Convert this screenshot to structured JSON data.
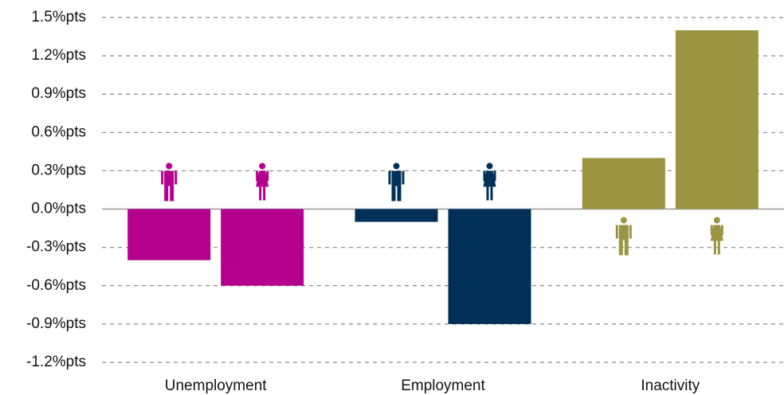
{
  "chart_data": {
    "type": "bar",
    "categories": [
      "Unemployment",
      "Employment",
      "Inactivity"
    ],
    "colors": [
      "#b5008f",
      "#003057",
      "#9b9441"
    ],
    "series": [
      {
        "values": [
          -0.4,
          -0.1,
          0.4
        ]
      },
      {
        "values": [
          -0.6,
          -0.9,
          1.4
        ]
      }
    ],
    "ylim": [
      -1.2,
      1.5
    ],
    "yticks": [
      {
        "value": 1.5,
        "label": "1.5%pts"
      },
      {
        "value": 1.2,
        "label": "1.2%pts"
      },
      {
        "value": 0.9,
        "label": "0.9%pts"
      },
      {
        "value": 0.6,
        "label": "0.6%pts"
      },
      {
        "value": 0.3,
        "label": "0.3%pts"
      },
      {
        "value": 0.0,
        "label": "0.0%pts"
      },
      {
        "value": -0.3,
        "label": "-0.3%pts"
      },
      {
        "value": -0.6,
        "label": "-0.6%pts"
      },
      {
        "value": -0.9,
        "label": "-0.9%pts"
      },
      {
        "value": -1.2,
        "label": "-1.2%pts"
      }
    ],
    "grid": true
  }
}
